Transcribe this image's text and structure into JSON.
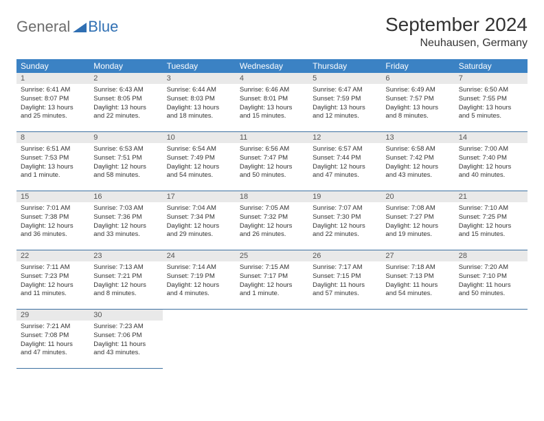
{
  "logo": {
    "general": "General",
    "blue": "Blue"
  },
  "title": "September 2024",
  "location": "Neuhausen, Germany",
  "colors": {
    "header_bg": "#3b82c4",
    "header_text": "#ffffff",
    "daynum_bg": "#e9e9e9",
    "cell_border": "#3b6fa0",
    "body_text": "#333333",
    "logo_gray": "#6c6c6c",
    "logo_blue": "#2f6fb3",
    "page_bg": "#ffffff"
  },
  "fonts": {
    "title_size_pt": 21,
    "location_size_pt": 12,
    "weekday_size_pt": 9,
    "daynum_size_pt": 8,
    "body_size_pt": 7
  },
  "weekdays": [
    "Sunday",
    "Monday",
    "Tuesday",
    "Wednesday",
    "Thursday",
    "Friday",
    "Saturday"
  ],
  "days": [
    {
      "n": "1",
      "sunrise": "Sunrise: 6:41 AM",
      "sunset": "Sunset: 8:07 PM",
      "daylight": "Daylight: 13 hours and 25 minutes."
    },
    {
      "n": "2",
      "sunrise": "Sunrise: 6:43 AM",
      "sunset": "Sunset: 8:05 PM",
      "daylight": "Daylight: 13 hours and 22 minutes."
    },
    {
      "n": "3",
      "sunrise": "Sunrise: 6:44 AM",
      "sunset": "Sunset: 8:03 PM",
      "daylight": "Daylight: 13 hours and 18 minutes."
    },
    {
      "n": "4",
      "sunrise": "Sunrise: 6:46 AM",
      "sunset": "Sunset: 8:01 PM",
      "daylight": "Daylight: 13 hours and 15 minutes."
    },
    {
      "n": "5",
      "sunrise": "Sunrise: 6:47 AM",
      "sunset": "Sunset: 7:59 PM",
      "daylight": "Daylight: 13 hours and 12 minutes."
    },
    {
      "n": "6",
      "sunrise": "Sunrise: 6:49 AM",
      "sunset": "Sunset: 7:57 PM",
      "daylight": "Daylight: 13 hours and 8 minutes."
    },
    {
      "n": "7",
      "sunrise": "Sunrise: 6:50 AM",
      "sunset": "Sunset: 7:55 PM",
      "daylight": "Daylight: 13 hours and 5 minutes."
    },
    {
      "n": "8",
      "sunrise": "Sunrise: 6:51 AM",
      "sunset": "Sunset: 7:53 PM",
      "daylight": "Daylight: 13 hours and 1 minute."
    },
    {
      "n": "9",
      "sunrise": "Sunrise: 6:53 AM",
      "sunset": "Sunset: 7:51 PM",
      "daylight": "Daylight: 12 hours and 58 minutes."
    },
    {
      "n": "10",
      "sunrise": "Sunrise: 6:54 AM",
      "sunset": "Sunset: 7:49 PM",
      "daylight": "Daylight: 12 hours and 54 minutes."
    },
    {
      "n": "11",
      "sunrise": "Sunrise: 6:56 AM",
      "sunset": "Sunset: 7:47 PM",
      "daylight": "Daylight: 12 hours and 50 minutes."
    },
    {
      "n": "12",
      "sunrise": "Sunrise: 6:57 AM",
      "sunset": "Sunset: 7:44 PM",
      "daylight": "Daylight: 12 hours and 47 minutes."
    },
    {
      "n": "13",
      "sunrise": "Sunrise: 6:58 AM",
      "sunset": "Sunset: 7:42 PM",
      "daylight": "Daylight: 12 hours and 43 minutes."
    },
    {
      "n": "14",
      "sunrise": "Sunrise: 7:00 AM",
      "sunset": "Sunset: 7:40 PM",
      "daylight": "Daylight: 12 hours and 40 minutes."
    },
    {
      "n": "15",
      "sunrise": "Sunrise: 7:01 AM",
      "sunset": "Sunset: 7:38 PM",
      "daylight": "Daylight: 12 hours and 36 minutes."
    },
    {
      "n": "16",
      "sunrise": "Sunrise: 7:03 AM",
      "sunset": "Sunset: 7:36 PM",
      "daylight": "Daylight: 12 hours and 33 minutes."
    },
    {
      "n": "17",
      "sunrise": "Sunrise: 7:04 AM",
      "sunset": "Sunset: 7:34 PM",
      "daylight": "Daylight: 12 hours and 29 minutes."
    },
    {
      "n": "18",
      "sunrise": "Sunrise: 7:05 AM",
      "sunset": "Sunset: 7:32 PM",
      "daylight": "Daylight: 12 hours and 26 minutes."
    },
    {
      "n": "19",
      "sunrise": "Sunrise: 7:07 AM",
      "sunset": "Sunset: 7:30 PM",
      "daylight": "Daylight: 12 hours and 22 minutes."
    },
    {
      "n": "20",
      "sunrise": "Sunrise: 7:08 AM",
      "sunset": "Sunset: 7:27 PM",
      "daylight": "Daylight: 12 hours and 19 minutes."
    },
    {
      "n": "21",
      "sunrise": "Sunrise: 7:10 AM",
      "sunset": "Sunset: 7:25 PM",
      "daylight": "Daylight: 12 hours and 15 minutes."
    },
    {
      "n": "22",
      "sunrise": "Sunrise: 7:11 AM",
      "sunset": "Sunset: 7:23 PM",
      "daylight": "Daylight: 12 hours and 11 minutes."
    },
    {
      "n": "23",
      "sunrise": "Sunrise: 7:13 AM",
      "sunset": "Sunset: 7:21 PM",
      "daylight": "Daylight: 12 hours and 8 minutes."
    },
    {
      "n": "24",
      "sunrise": "Sunrise: 7:14 AM",
      "sunset": "Sunset: 7:19 PM",
      "daylight": "Daylight: 12 hours and 4 minutes."
    },
    {
      "n": "25",
      "sunrise": "Sunrise: 7:15 AM",
      "sunset": "Sunset: 7:17 PM",
      "daylight": "Daylight: 12 hours and 1 minute."
    },
    {
      "n": "26",
      "sunrise": "Sunrise: 7:17 AM",
      "sunset": "Sunset: 7:15 PM",
      "daylight": "Daylight: 11 hours and 57 minutes."
    },
    {
      "n": "27",
      "sunrise": "Sunrise: 7:18 AM",
      "sunset": "Sunset: 7:13 PM",
      "daylight": "Daylight: 11 hours and 54 minutes."
    },
    {
      "n": "28",
      "sunrise": "Sunrise: 7:20 AM",
      "sunset": "Sunset: 7:10 PM",
      "daylight": "Daylight: 11 hours and 50 minutes."
    },
    {
      "n": "29",
      "sunrise": "Sunrise: 7:21 AM",
      "sunset": "Sunset: 7:08 PM",
      "daylight": "Daylight: 11 hours and 47 minutes."
    },
    {
      "n": "30",
      "sunrise": "Sunrise: 7:23 AM",
      "sunset": "Sunset: 7:06 PM",
      "daylight": "Daylight: 11 hours and 43 minutes."
    }
  ]
}
